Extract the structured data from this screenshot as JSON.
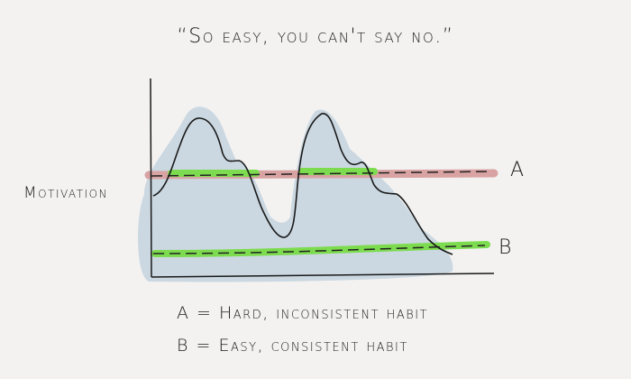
{
  "title": "“So easy, you can't say no.”",
  "y_axis_label": "Motivation",
  "lines": [
    {
      "label": "A",
      "color": "#d9a3a3",
      "meaning": "A = Hard, inconsistent habit"
    },
    {
      "label": "B",
      "color": "#7ddb4f",
      "meaning": "B = Easy, consistent habit"
    }
  ],
  "colors": {
    "area": "#c9d7e0",
    "curve": "#1a1a1a",
    "highlight": "#7ddb4f"
  }
}
